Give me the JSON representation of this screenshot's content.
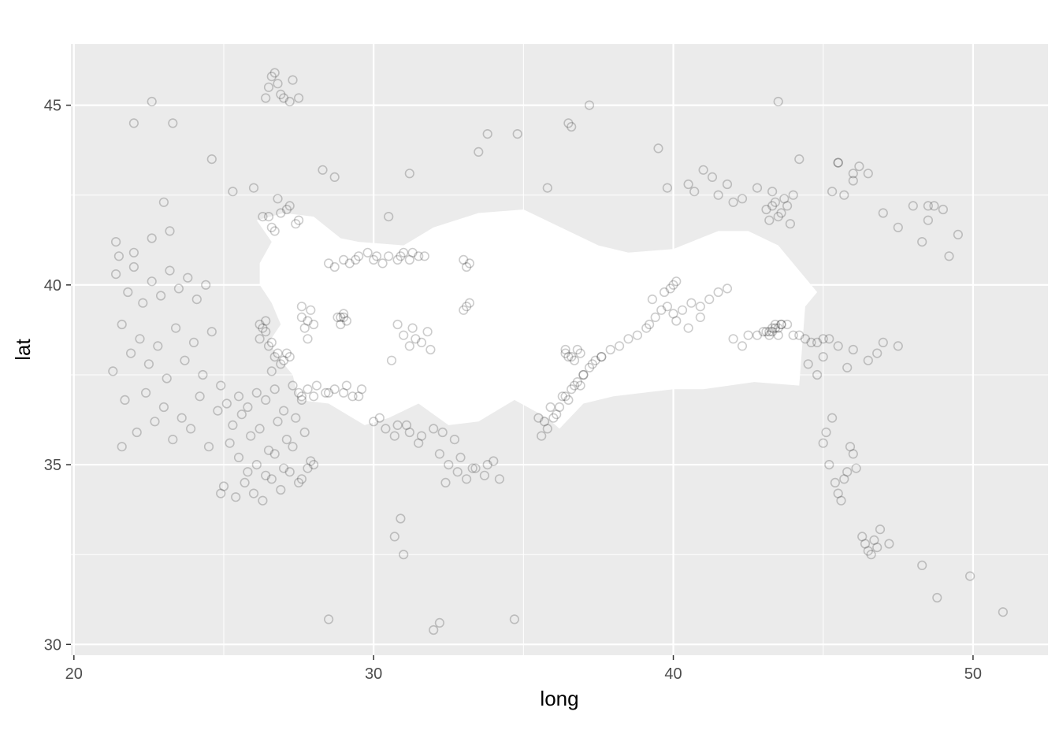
{
  "colors": {
    "panel": "#ebebeb",
    "grid_major": "#ffffff",
    "land": "#ffffff",
    "points": "#000000",
    "tick_text": "#4d4d4d"
  },
  "chart_data": {
    "type": "scatter",
    "xlabel": "long",
    "ylabel": "lat",
    "xlim": [
      19.9,
      52.5
    ],
    "ylim": [
      29.7,
      46.7
    ],
    "x_ticks": [
      20,
      30,
      40,
      50
    ],
    "y_ticks": [
      30,
      35,
      40,
      45
    ],
    "x_tick_labels": [
      "20",
      "30",
      "40",
      "50"
    ],
    "y_tick_labels": [
      "30",
      "35",
      "40",
      "45"
    ],
    "grid": true,
    "point_style": "open-circle",
    "point_alpha": 0.2,
    "background_layer": {
      "name": "Turkey land polygon",
      "outline": [
        [
          26.1,
          41.8
        ],
        [
          27.0,
          42.0
        ],
        [
          28.0,
          41.9
        ],
        [
          28.9,
          41.3
        ],
        [
          29.5,
          41.2
        ],
        [
          31.0,
          41.1
        ],
        [
          32.0,
          41.6
        ],
        [
          33.5,
          42.0
        ],
        [
          35.0,
          42.1
        ],
        [
          36.0,
          41.7
        ],
        [
          37.5,
          41.1
        ],
        [
          38.5,
          40.9
        ],
        [
          40.0,
          41.0
        ],
        [
          41.5,
          41.5
        ],
        [
          42.5,
          41.5
        ],
        [
          43.5,
          41.1
        ],
        [
          44.8,
          39.8
        ],
        [
          44.4,
          39.4
        ],
        [
          44.2,
          37.2
        ],
        [
          42.7,
          37.3
        ],
        [
          41.0,
          37.1
        ],
        [
          40.0,
          37.1
        ],
        [
          38.0,
          36.9
        ],
        [
          37.0,
          36.7
        ],
        [
          36.2,
          36.0
        ],
        [
          35.8,
          36.3
        ],
        [
          34.7,
          36.8
        ],
        [
          33.5,
          36.2
        ],
        [
          32.5,
          36.1
        ],
        [
          31.5,
          36.7
        ],
        [
          30.5,
          36.3
        ],
        [
          29.7,
          36.1
        ],
        [
          28.5,
          36.7
        ],
        [
          27.5,
          36.8
        ],
        [
          27.3,
          37.5
        ],
        [
          26.9,
          37.9
        ],
        [
          26.5,
          38.4
        ],
        [
          26.9,
          38.9
        ],
        [
          26.6,
          39.5
        ],
        [
          26.2,
          40.0
        ],
        [
          26.2,
          40.6
        ],
        [
          26.6,
          41.2
        ],
        [
          26.1,
          41.8
        ]
      ]
    },
    "x": [
      26.8,
      26.9,
      27.0,
      27.2,
      27.3,
      26.7,
      26.5,
      26.4,
      26.6,
      27.5,
      21.5,
      21.4,
      21.8,
      22.0,
      22.3,
      22.6,
      22.9,
      23.2,
      23.5,
      23.8,
      24.1,
      24.4,
      21.6,
      22.2,
      22.8,
      23.4,
      24.0,
      24.6,
      21.3,
      21.9,
      22.5,
      23.1,
      23.7,
      24.3,
      24.9,
      21.7,
      22.4,
      23.0,
      23.6,
      24.2,
      24.8,
      22.1,
      22.7,
      23.3,
      23.9,
      24.5,
      21.4,
      22.0,
      22.6,
      23.2,
      25.2,
      25.5,
      25.8,
      26.1,
      26.4,
      26.7,
      27.0,
      27.3,
      27.6,
      27.9,
      25.3,
      25.6,
      25.9,
      26.2,
      26.5,
      26.8,
      27.1,
      27.4,
      27.7,
      28.0,
      25.0,
      25.4,
      25.7,
      26.0,
      26.3,
      26.6,
      26.9,
      27.2,
      27.5,
      27.8,
      25.1,
      25.5,
      25.8,
      26.1,
      26.4,
      26.7,
      27.0,
      27.3,
      27.6,
      24.9,
      26.2,
      26.4,
      26.6,
      26.8,
      27.0,
      27.2,
      26.3,
      26.5,
      26.7,
      26.9,
      27.1,
      26.2,
      26.4,
      26.6,
      27.6,
      27.8,
      28.0,
      27.7,
      27.9,
      27.8,
      27.6,
      28.9,
      29.0,
      29.1,
      28.8,
      29.0,
      28.9,
      28.5,
      29.0,
      29.5,
      30.0,
      30.5,
      31.0,
      31.5,
      28.7,
      29.2,
      29.8,
      30.3,
      30.8,
      31.3,
      31.7,
      29.4,
      30.1,
      30.9,
      31.2,
      27.5,
      27.8,
      28.1,
      28.4,
      28.7,
      29.0,
      29.3,
      29.6,
      27.6,
      28.0,
      28.5,
      29.1,
      29.5,
      30.0,
      30.4,
      30.8,
      31.2,
      31.6,
      32.0,
      30.2,
      30.7,
      31.1,
      31.5,
      32.3,
      32.7,
      31.0,
      31.4,
      31.8,
      30.8,
      31.2,
      31.6,
      30.6,
      31.3,
      31.9,
      33.0,
      33.1,
      33.2,
      33.1,
      33.0,
      33.2,
      32.5,
      32.8,
      33.1,
      33.4,
      33.7,
      34.0,
      32.4,
      32.9,
      33.3,
      33.8,
      34.2,
      32.2,
      35.5,
      35.9,
      36.3,
      36.7,
      37.0,
      37.3,
      37.6,
      37.9,
      38.2,
      38.5,
      38.8,
      39.1,
      36.4,
      36.6,
      36.8,
      36.5,
      36.7,
      36.9,
      36.4,
      35.6,
      35.8,
      36.0,
      36.2,
      36.4,
      36.6,
      36.8,
      37.0,
      37.2,
      37.4,
      37.6,
      35.7,
      36.1,
      36.5,
      36.9,
      39.2,
      39.4,
      39.6,
      39.8,
      40.0,
      40.3,
      40.6,
      40.9,
      41.2,
      41.5,
      41.8,
      39.3,
      39.7,
      40.1,
      40.5,
      40.9,
      40.0,
      39.9,
      40.1,
      42.0,
      42.5,
      43.0,
      43.3,
      43.6,
      44.0,
      44.4,
      44.8,
      45.2,
      42.3,
      42.8,
      43.2,
      43.5,
      43.8,
      44.2,
      44.6,
      45.0,
      43.2,
      43.4,
      43.6,
      43.3,
      43.5,
      43.1,
      43.4,
      43.1,
      43.4,
      43.7,
      44.0,
      43.2,
      43.5,
      43.8,
      43.3,
      43.6,
      43.9,
      45.0,
      45.2,
      45.4,
      45.6,
      45.8,
      46.0,
      45.1,
      45.3,
      45.5,
      45.7,
      45.9,
      46.1,
      46.3,
      46.5,
      46.7,
      46.9,
      46.4,
      46.6,
      46.8,
      47.2,
      44.5,
      45.0,
      45.5,
      46.0,
      46.5,
      47.0,
      47.5,
      44.8,
      45.8,
      46.8,
      47.0,
      47.5,
      48.0,
      48.5,
      49.0,
      49.5,
      48.7,
      48.3,
      49.2,
      45.5,
      46.0,
      46.5,
      45.7,
      46.2,
      45.3,
      40.5,
      41.0,
      41.5,
      42.0,
      40.7,
      41.3,
      41.8,
      42.3,
      42.8,
      43.3,
      26.5,
      26.8,
      27.1,
      27.4,
      26.6,
      26.9,
      27.2,
      27.5,
      26.7,
      26.3,
      22.6,
      23.3,
      24.6,
      25.3,
      26.0,
      28.3,
      28.7,
      30.5,
      31.2,
      33.5,
      34.8,
      36.5,
      37.2,
      39.5,
      39.8,
      43.5,
      44.2,
      45.5,
      46.0,
      48.5,
      21.6,
      22.0,
      23.0,
      28.5,
      30.7,
      31.0,
      32.0,
      32.2,
      34.7,
      30.9,
      33.8,
      35.8,
      36.6,
      49.9,
      51.0,
      48.8,
      48.3
    ],
    "y": [
      45.6,
      45.3,
      45.2,
      45.1,
      45.7,
      45.9,
      45.5,
      45.2,
      45.8,
      45.2,
      40.8,
      40.3,
      39.8,
      40.5,
      39.5,
      40.1,
      39.7,
      40.4,
      39.9,
      40.2,
      39.6,
      40.0,
      38.9,
      38.5,
      38.3,
      38.8,
      38.4,
      38.7,
      37.6,
      38.1,
      37.8,
      37.4,
      37.9,
      37.5,
      37.2,
      36.8,
      37.0,
      36.6,
      36.3,
      36.9,
      36.5,
      35.9,
      36.2,
      35.7,
      36.0,
      35.5,
      41.2,
      40.9,
      41.3,
      41.5,
      35.6,
      35.2,
      34.8,
      35.0,
      34.7,
      35.3,
      34.9,
      35.5,
      34.6,
      35.1,
      36.1,
      36.4,
      35.8,
      36.0,
      35.4,
      36.2,
      35.7,
      36.3,
      35.9,
      35.0,
      34.4,
      34.1,
      34.5,
      34.2,
      34.0,
      34.6,
      34.3,
      34.8,
      34.5,
      34.9,
      36.7,
      36.9,
      36.6,
      37.0,
      36.8,
      37.1,
      36.5,
      37.2,
      36.9,
      34.2,
      38.9,
      38.7,
      38.4,
      38.1,
      37.9,
      38.0,
      38.8,
      38.3,
      38.0,
      37.8,
      38.1,
      38.5,
      39.0,
      37.6,
      39.1,
      39.0,
      38.9,
      38.8,
      39.3,
      38.5,
      39.4,
      39.1,
      39.2,
      39.0,
      39.1,
      39.1,
      38.9,
      40.6,
      40.7,
      40.8,
      40.7,
      40.8,
      40.9,
      40.8,
      40.5,
      40.6,
      40.9,
      40.6,
      40.7,
      40.9,
      40.8,
      40.7,
      40.8,
      40.8,
      40.7,
      37.0,
      37.1,
      37.2,
      37.0,
      37.1,
      37.0,
      36.9,
      37.1,
      36.8,
      36.9,
      37.0,
      37.2,
      36.9,
      36.2,
      36.0,
      36.1,
      35.9,
      35.8,
      36.0,
      36.3,
      35.8,
      36.1,
      35.6,
      35.9,
      35.7,
      38.6,
      38.5,
      38.7,
      38.9,
      38.3,
      38.4,
      37.9,
      38.8,
      38.2,
      40.7,
      40.5,
      40.6,
      39.4,
      39.3,
      39.5,
      35.0,
      34.8,
      34.6,
      34.9,
      34.7,
      35.1,
      34.5,
      35.2,
      34.9,
      35.0,
      34.6,
      35.3,
      36.3,
      36.6,
      36.9,
      37.2,
      37.5,
      37.8,
      38.0,
      38.2,
      38.3,
      38.5,
      38.6,
      38.8,
      38.1,
      38.0,
      38.2,
      38.0,
      37.9,
      38.1,
      38.2,
      35.8,
      36.0,
      36.3,
      36.6,
      36.9,
      37.1,
      37.3,
      37.5,
      37.7,
      37.9,
      38.0,
      36.2,
      36.4,
      36.8,
      37.2,
      38.9,
      39.1,
      39.3,
      39.4,
      39.2,
      39.3,
      39.5,
      39.4,
      39.6,
      39.8,
      39.9,
      39.6,
      39.8,
      39.0,
      38.8,
      39.1,
      40.0,
      39.9,
      40.1,
      38.5,
      38.6,
      38.7,
      38.8,
      38.9,
      38.6,
      38.5,
      38.4,
      38.5,
      38.3,
      38.6,
      38.7,
      38.8,
      38.9,
      38.6,
      38.4,
      38.5,
      38.6,
      38.8,
      38.9,
      38.7,
      38.6,
      38.7,
      38.9,
      42.1,
      42.3,
      42.4,
      42.5,
      41.8,
      41.9,
      42.2,
      42.6,
      42.0,
      41.7,
      35.6,
      35.0,
      34.5,
      34.0,
      34.8,
      35.3,
      35.9,
      36.3,
      34.2,
      34.6,
      35.5,
      34.9,
      33.0,
      32.6,
      32.9,
      33.2,
      32.8,
      32.5,
      32.7,
      32.8,
      37.8,
      38.0,
      38.3,
      38.2,
      37.9,
      38.4,
      38.3,
      37.5,
      37.7,
      38.1,
      42.0,
      41.6,
      42.2,
      41.8,
      42.1,
      41.4,
      42.2,
      41.2,
      40.8,
      43.4,
      42.9,
      43.1,
      42.5,
      43.3,
      42.6,
      42.8,
      43.2,
      42.5,
      42.3,
      42.6,
      43.0,
      42.8,
      42.4,
      42.7,
      42.2,
      41.9,
      42.4,
      42.1,
      41.7,
      41.6,
      42.0,
      42.2,
      41.8,
      41.5,
      41.9,
      45.1,
      44.5,
      43.5,
      42.6,
      42.7,
      43.2,
      43.0,
      41.9,
      43.1,
      43.7,
      44.2,
      44.5,
      45.0,
      43.8,
      42.7,
      45.1,
      43.5,
      43.4,
      43.1,
      42.2,
      35.5,
      44.5,
      42.3,
      30.7,
      33.0,
      32.5,
      30.4,
      30.6,
      30.7,
      33.5,
      44.2,
      42.7,
      44.4,
      31.9,
      30.9,
      31.3,
      32.2
    ]
  }
}
